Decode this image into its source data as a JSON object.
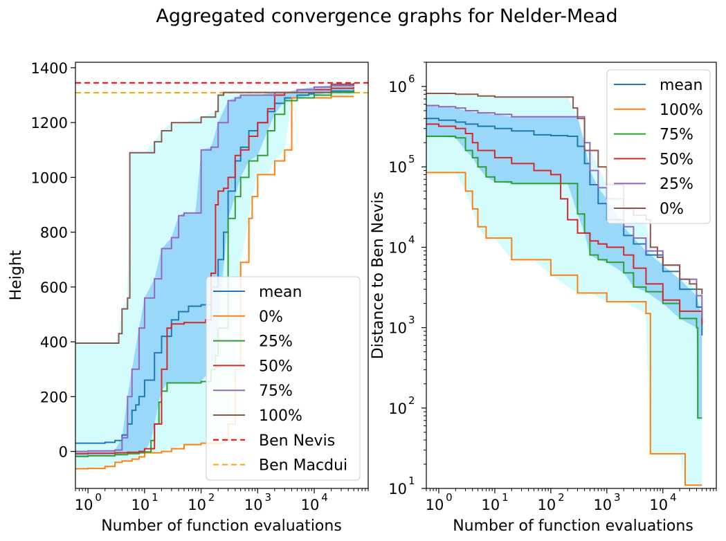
{
  "figure": {
    "title": "Aggregated convergence graphs for Nelder-Mead"
  },
  "colors": {
    "mean": "#1f77b4",
    "orange": "#ff7f0e",
    "green": "#2ca02c",
    "red": "#d62728",
    "purple": "#9467bd",
    "brown": "#8c564b",
    "band_outer": "#d4fcfc",
    "band_inner": "#9ad8fa",
    "ben_nevis": "#ff0000",
    "ben_macdui": "#ffa500"
  },
  "chart_data": [
    {
      "type": "line",
      "xscale": "log",
      "xlabel": "Number of function evaluations",
      "ylabel": "Height",
      "xlim": [
        0.6,
        90000
      ],
      "ylim": [
        -135,
        1420
      ],
      "xticks": [
        1,
        10,
        100,
        1000,
        10000
      ],
      "xtick_labels": [
        "10",
        "10",
        "10",
        "10",
        "10"
      ],
      "xtick_exponents": [
        "0",
        "1",
        "2",
        "3",
        "4"
      ],
      "yticks": [
        0,
        200,
        400,
        600,
        800,
        1000,
        1200,
        1400
      ],
      "ytick_labels": [
        "0",
        "200",
        "400",
        "600",
        "800",
        "1000",
        "1200",
        "1400"
      ],
      "legend_position": "lower-right",
      "hlines": [
        {
          "name": "Ben Nevis",
          "y": 1345,
          "color": "#ff0000"
        },
        {
          "name": "Ben Macdui",
          "y": 1309,
          "color": "#ffa500"
        }
      ],
      "series": [
        {
          "name": "mean",
          "color": "#1f77b4",
          "x": [
            0.6,
            2,
            3,
            4,
            5,
            6,
            7,
            8,
            10,
            15,
            20,
            30,
            40,
            60,
            100,
            150,
            200,
            250,
            300,
            400,
            500,
            700,
            1000,
            1500,
            2000,
            3000,
            5000,
            8000,
            10000,
            20000,
            50000
          ],
          "y": [
            30,
            33,
            40,
            60,
            100,
            150,
            170,
            200,
            260,
            360,
            420,
            480,
            510,
            530,
            535,
            600,
            700,
            800,
            950,
            1060,
            1110,
            1170,
            1200,
            1240,
            1270,
            1290,
            1300,
            1305,
            1310,
            1315,
            1320
          ]
        },
        {
          "name": "0%",
          "color": "#ff7f0e",
          "x": [
            0.6,
            1,
            2,
            3,
            4,
            6,
            8,
            10,
            20,
            30,
            50,
            80,
            100,
            150,
            200,
            250,
            300,
            400,
            500,
            700,
            800,
            1000,
            1500,
            2000,
            3000,
            4000,
            5000,
            8000,
            10000,
            20000,
            50000
          ],
          "y": [
            -63,
            -62,
            -55,
            -40,
            -35,
            -28,
            -20,
            -5,
            0,
            10,
            25,
            25,
            30,
            30,
            30,
            40,
            100,
            300,
            690,
            850,
            930,
            1010,
            1010,
            1060,
            1100,
            1290,
            1290,
            1290,
            1290,
            1295,
            1295
          ]
        },
        {
          "name": "25%",
          "color": "#2ca02c",
          "x": [
            0.6,
            1,
            3,
            5,
            8,
            10,
            13,
            15,
            18,
            20,
            25,
            30,
            50,
            100,
            150,
            180,
            200,
            300,
            400,
            500,
            700,
            1000,
            1500,
            2000,
            3000,
            5000,
            10000,
            20000,
            50000
          ],
          "y": [
            -18,
            -16,
            -12,
            -8,
            -5,
            -2,
            40,
            100,
            180,
            220,
            250,
            250,
            250,
            255,
            300,
            350,
            450,
            850,
            930,
            1000,
            1060,
            1080,
            1170,
            1230,
            1280,
            1290,
            1300,
            1310,
            1320
          ]
        },
        {
          "name": "50%",
          "color": "#d62728",
          "x": [
            0.6,
            1,
            3,
            5,
            8,
            10,
            15,
            20,
            25,
            30,
            50,
            100,
            120,
            150,
            180,
            200,
            250,
            300,
            400,
            500,
            700,
            1000,
            1500,
            2000,
            3000,
            5000,
            10000,
            20000,
            50000
          ],
          "y": [
            -8,
            -7,
            -5,
            -3,
            0,
            10,
            100,
            300,
            450,
            465,
            470,
            470,
            480,
            650,
            900,
            950,
            960,
            1000,
            1080,
            1100,
            1150,
            1200,
            1250,
            1300,
            1310,
            1320,
            1320,
            1325,
            1330
          ]
        },
        {
          "name": "75%",
          "color": "#9467bd",
          "x": [
            0.6,
            1,
            3,
            4,
            5,
            6,
            8,
            10,
            15,
            20,
            30,
            40,
            50,
            80,
            100,
            150,
            200,
            300,
            400,
            500,
            700,
            1000,
            2000,
            3000,
            5000,
            10000,
            20000,
            50000
          ],
          "y": [
            0,
            2,
            5,
            50,
            200,
            300,
            450,
            560,
            630,
            740,
            780,
            860,
            870,
            870,
            1100,
            1110,
            1200,
            1280,
            1290,
            1300,
            1300,
            1300,
            1310,
            1310,
            1320,
            1330,
            1335,
            1340
          ]
        },
        {
          "name": "100%",
          "color": "#8c564b",
          "x": [
            0.6,
            3,
            3.5,
            4,
            5,
            5.5,
            10,
            15,
            20,
            30,
            50,
            100,
            180,
            200,
            250,
            300,
            1000,
            5000,
            10000,
            20000,
            50000
          ],
          "y": [
            395,
            395,
            430,
            520,
            560,
            1090,
            1090,
            1130,
            1170,
            1200,
            1200,
            1220,
            1240,
            1300,
            1310,
            1310,
            1310,
            1310,
            1310,
            1340,
            1345
          ]
        }
      ]
    },
    {
      "type": "line",
      "xscale": "log",
      "yscale": "log",
      "xlabel": "Number of function evaluations",
      "ylabel": "Distance to Ben Nevis",
      "xlim": [
        0.6,
        90000
      ],
      "ylim": [
        10,
        2000000
      ],
      "xticks": [
        1,
        10,
        100,
        1000,
        10000
      ],
      "xtick_labels": [
        "10",
        "10",
        "10",
        "10",
        "10"
      ],
      "xtick_exponents": [
        "0",
        "1",
        "2",
        "3",
        "4"
      ],
      "yticks": [
        10,
        100,
        1000,
        10000,
        100000,
        1000000
      ],
      "ytick_labels": [
        "10",
        "10",
        "10",
        "10",
        "10",
        "10"
      ],
      "ytick_exponents": [
        "1",
        "2",
        "3",
        "4",
        "5",
        "6"
      ],
      "legend_position": "upper-right",
      "series": [
        {
          "name": "mean",
          "color": "#1f77b4",
          "x": [
            0.6,
            1,
            2,
            3,
            5,
            10,
            20,
            50,
            100,
            200,
            300,
            400,
            500,
            700,
            1000,
            2000,
            3000,
            5000,
            10000,
            20000,
            40000,
            50000
          ],
          "y": [
            400000,
            380000,
            360000,
            340000,
            320000,
            300000,
            280000,
            250000,
            245000,
            240000,
            180000,
            110000,
            60000,
            35000,
            22000,
            14000,
            11000,
            8000,
            5000,
            3000,
            1800,
            800
          ]
        },
        {
          "name": "100%",
          "color": "#ff7f0e",
          "x": [
            0.6,
            2,
            3,
            4,
            5,
            7,
            10,
            20,
            50,
            100,
            300,
            500,
            1000,
            2000,
            5000,
            6000,
            10000,
            20000,
            25000,
            50000
          ],
          "y": [
            85000,
            85000,
            50000,
            30000,
            18000,
            13000,
            13000,
            7000,
            7000,
            4500,
            2700,
            2700,
            2100,
            2100,
            1500,
            27,
            27,
            27,
            11,
            11
          ]
        },
        {
          "name": "75%",
          "color": "#2ca02c",
          "x": [
            0.6,
            2,
            3,
            4,
            5,
            7,
            10,
            20,
            50,
            100,
            200,
            300,
            400,
            500,
            700,
            1000,
            2000,
            3000,
            5000,
            10000,
            20000,
            40000,
            42000,
            50000
          ],
          "y": [
            240000,
            230000,
            160000,
            130000,
            100000,
            75000,
            65000,
            62000,
            62000,
            62000,
            62000,
            26000,
            15000,
            8000,
            7000,
            6500,
            4800,
            3200,
            2800,
            2000,
            1300,
            1000,
            75,
            75
          ]
        },
        {
          "name": "50%",
          "color": "#d62728",
          "x": [
            0.6,
            1,
            2,
            3,
            4,
            5,
            10,
            20,
            50,
            100,
            150,
            200,
            300,
            500,
            700,
            1000,
            2000,
            3000,
            5000,
            10000,
            20000,
            50000
          ],
          "y": [
            340000,
            320000,
            300000,
            260000,
            200000,
            160000,
            130000,
            110000,
            90000,
            80000,
            40000,
            22000,
            15000,
            12000,
            11000,
            10000,
            8000,
            5500,
            3500,
            2200,
            1600,
            1100
          ]
        },
        {
          "name": "25%",
          "color": "#9467bd",
          "x": [
            0.6,
            1,
            2,
            3,
            5,
            10,
            20,
            50,
            100,
            200,
            300,
            400,
            500,
            700,
            1000,
            2000,
            3000,
            5000,
            10000,
            20000,
            40000,
            50000
          ],
          "y": [
            580000,
            560000,
            540000,
            500000,
            470000,
            450000,
            420000,
            420000,
            420000,
            420000,
            420000,
            200000,
            90000,
            55000,
            40000,
            18000,
            13000,
            9000,
            6000,
            4000,
            2500,
            1300
          ]
        },
        {
          "name": "0%",
          "color": "#8c564b",
          "x": [
            0.6,
            2,
            5,
            10,
            20,
            50,
            100,
            200,
            250,
            300,
            400,
            500,
            700,
            1000,
            2000,
            3000,
            5000,
            6000,
            8000,
            10000,
            20000,
            30000,
            40000,
            50000
          ],
          "y": [
            820000,
            800000,
            760000,
            740000,
            740000,
            740000,
            740000,
            740000,
            540000,
            400000,
            160000,
            160000,
            100000,
            60000,
            30000,
            25000,
            22000,
            10000,
            7500,
            6000,
            4000,
            3500,
            3000,
            2600
          ]
        }
      ]
    }
  ]
}
